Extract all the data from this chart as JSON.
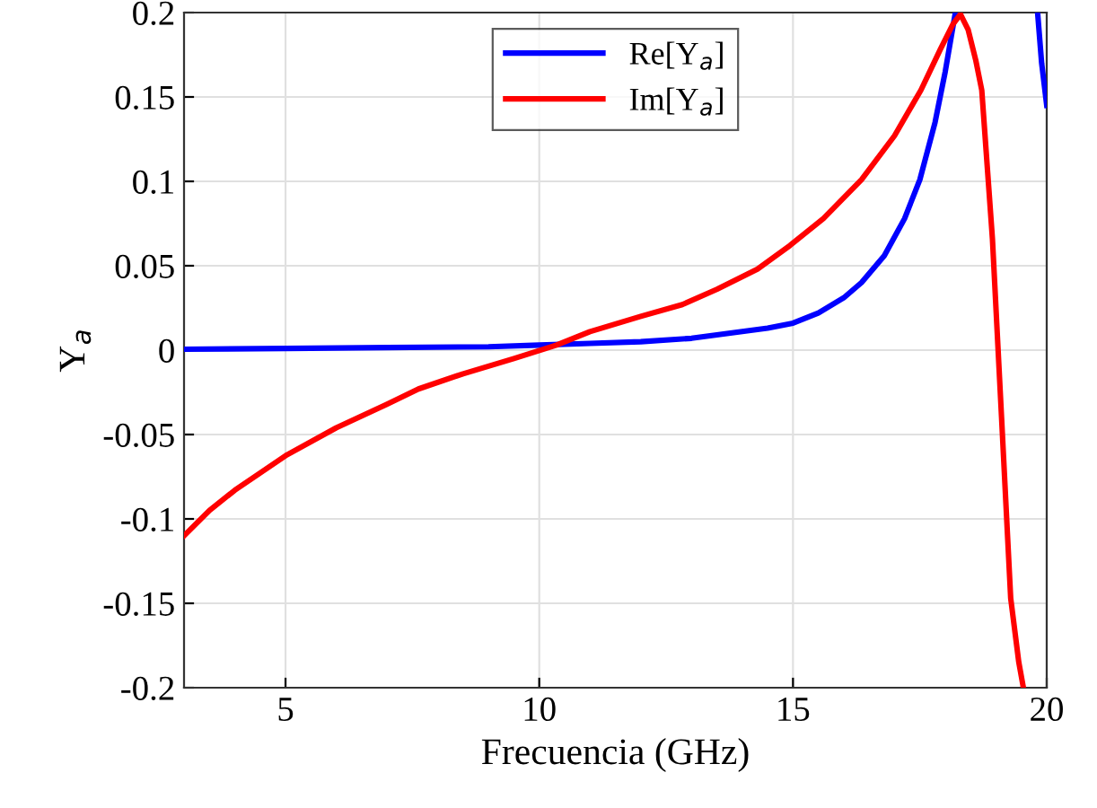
{
  "chart_data": {
    "type": "line",
    "xlabel": "Frecuencia (GHz)",
    "ylabel": "Y$_{a}$",
    "xlim": [
      3,
      20
    ],
    "ylim": [
      -0.2,
      0.2
    ],
    "xticks": [
      5,
      10,
      15,
      20
    ],
    "yticks": [
      -0.2,
      -0.15,
      -0.1,
      -0.05,
      0,
      0.05,
      0.1,
      0.15,
      0.2
    ],
    "grid": true,
    "legend": "top",
    "line_style": "solid",
    "series": [
      {
        "name": "Re[Y$_{a}$]",
        "color": "#0000ff",
        "x": [
          3,
          5,
          7,
          9,
          10,
          11,
          12,
          13,
          13.5,
          14,
          14.5,
          15,
          15.5,
          16,
          16.35,
          16.8,
          17.2,
          17.5,
          17.8,
          18,
          18.2,
          18.3,
          19.82,
          19.9,
          20
        ],
        "values": [
          0.0005,
          0.001,
          0.0015,
          0.002,
          0.003,
          0.004,
          0.005,
          0.007,
          0.009,
          0.011,
          0.013,
          0.016,
          0.022,
          0.031,
          0.04,
          0.056,
          0.078,
          0.101,
          0.135,
          0.165,
          0.2,
          null,
          0.2,
          0.17,
          0.145
        ]
      },
      {
        "name": "Im[Y$_{a}$]",
        "color": "#ff0000",
        "x": [
          3,
          3.5,
          4,
          5.03,
          6,
          7,
          7.62,
          8.5,
          9.5,
          10.34,
          11,
          12,
          12.82,
          13.5,
          14.3,
          14.94,
          15.6,
          16.35,
          17,
          17.52,
          17.9,
          18.15,
          18.3,
          18.45,
          18.6,
          18.72,
          18.93,
          19.11,
          19.29,
          19.45,
          19.54
        ],
        "values": [
          -0.11,
          -0.095,
          -0.083,
          -0.062,
          -0.046,
          -0.032,
          -0.023,
          -0.014,
          -0.005,
          0.003,
          0.011,
          0.02,
          0.027,
          0.036,
          0.048,
          0.062,
          0.078,
          0.101,
          0.127,
          0.154,
          0.178,
          0.193,
          0.199,
          0.19,
          0.172,
          0.154,
          0.066,
          -0.04,
          -0.147,
          -0.185,
          -0.2
        ]
      }
    ]
  }
}
